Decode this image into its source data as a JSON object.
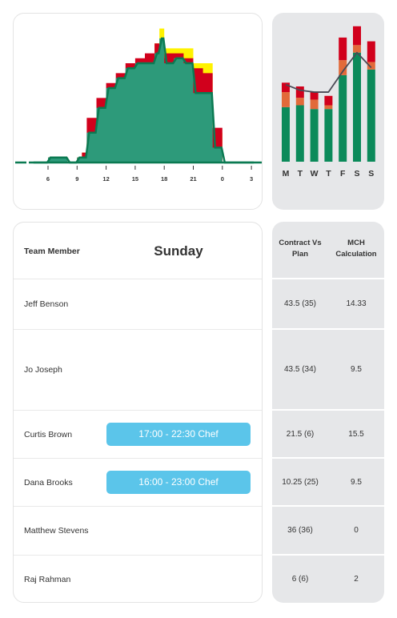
{
  "chart_data": [
    {
      "type": "area",
      "x_tick_labels": [
        "6",
        "9",
        "12",
        "15",
        "18",
        "21",
        "0",
        "3"
      ],
      "series": [
        {
          "color": "#fff200",
          "x": [
            4.5,
            5,
            6,
            7,
            8,
            9,
            9.5,
            10,
            11,
            12,
            13,
            14,
            15,
            16,
            17,
            17.5,
            18,
            19,
            20,
            21,
            22,
            23,
            24,
            25,
            27
          ],
          "values": [
            0,
            0,
            1,
            1,
            0,
            1,
            2,
            4,
            9,
            13,
            16,
            17,
            19,
            21,
            24,
            27,
            23,
            23,
            23,
            20,
            20,
            6,
            0,
            0,
            0
          ]
        },
        {
          "color": "#d1001c",
          "x": [
            4.5,
            5,
            6,
            7,
            8,
            9,
            9.5,
            10,
            11,
            12,
            13,
            14,
            15,
            16,
            17,
            17.5,
            18,
            19,
            20,
            21,
            22,
            23,
            24,
            25,
            27
          ],
          "values": [
            0,
            0,
            1,
            1,
            0,
            1,
            2,
            9,
            13,
            16,
            18,
            20,
            21,
            22,
            24,
            21,
            22,
            22,
            21,
            19,
            18,
            7,
            0,
            0,
            0
          ]
        },
        {
          "color": "#2d9a7a",
          "x": [
            4.5,
            5,
            6,
            7,
            8,
            9,
            9.5,
            10,
            11,
            12,
            13,
            14,
            15,
            16,
            17,
            17.5,
            18,
            19,
            20,
            21,
            22,
            23,
            24,
            25,
            27
          ],
          "values": [
            0,
            0,
            1,
            1,
            0,
            1,
            1,
            6,
            11,
            15,
            17,
            19,
            20,
            20,
            22,
            25,
            20,
            21,
            20,
            14,
            14,
            3,
            0,
            0,
            0
          ]
        }
      ],
      "line_color": "#0b7a52"
    },
    {
      "type": "bar",
      "categories": [
        "M",
        "T",
        "W",
        "T",
        "F",
        "S",
        "S"
      ],
      "series": [
        {
          "color": "#0b8a5a",
          "values": [
            29,
            30,
            28,
            28,
            46,
            58,
            49
          ]
        },
        {
          "color": "#e26a3a",
          "values": [
            8,
            4,
            5,
            2,
            8,
            4,
            4
          ]
        },
        {
          "color": "#d1001c",
          "values": [
            5,
            6,
            4,
            5,
            12,
            10,
            11
          ]
        }
      ],
      "line": {
        "color": "#4a4a55",
        "values": [
          41,
          38,
          37,
          37,
          48,
          58,
          50
        ]
      }
    }
  ],
  "roster": {
    "header_member": "Team Member",
    "header_day": "Sunday",
    "rows": [
      {
        "name": "Jeff Benson",
        "shift": ""
      },
      {
        "name": "Jo Joseph",
        "shift": ""
      },
      {
        "name": "Curtis Brown",
        "shift": "17:00 - 22:30 Chef"
      },
      {
        "name": "Dana Brooks",
        "shift": "16:00 - 23:00 Chef"
      },
      {
        "name": "Matthew Stevens",
        "shift": ""
      },
      {
        "name": "Raj Rahman",
        "shift": ""
      }
    ]
  },
  "stats": {
    "header_contract": "Contract Vs\nPlan",
    "header_mch": "MCH\nCalculation",
    "rows": [
      {
        "contract": "43.5 (35)",
        "mch": "14.33"
      },
      {
        "contract": "43.5 (34)",
        "mch": "9.5"
      },
      {
        "contract": "21.5 (6)",
        "mch": "15.5"
      },
      {
        "contract": "10.25 (25)",
        "mch": "9.5"
      },
      {
        "contract": "36 (36)",
        "mch": "0"
      },
      {
        "contract": "6 (6)",
        "mch": "2"
      }
    ]
  },
  "colors": {
    "shift_bg": "#5bc5ea",
    "card_grey": "#e6e7e9"
  }
}
